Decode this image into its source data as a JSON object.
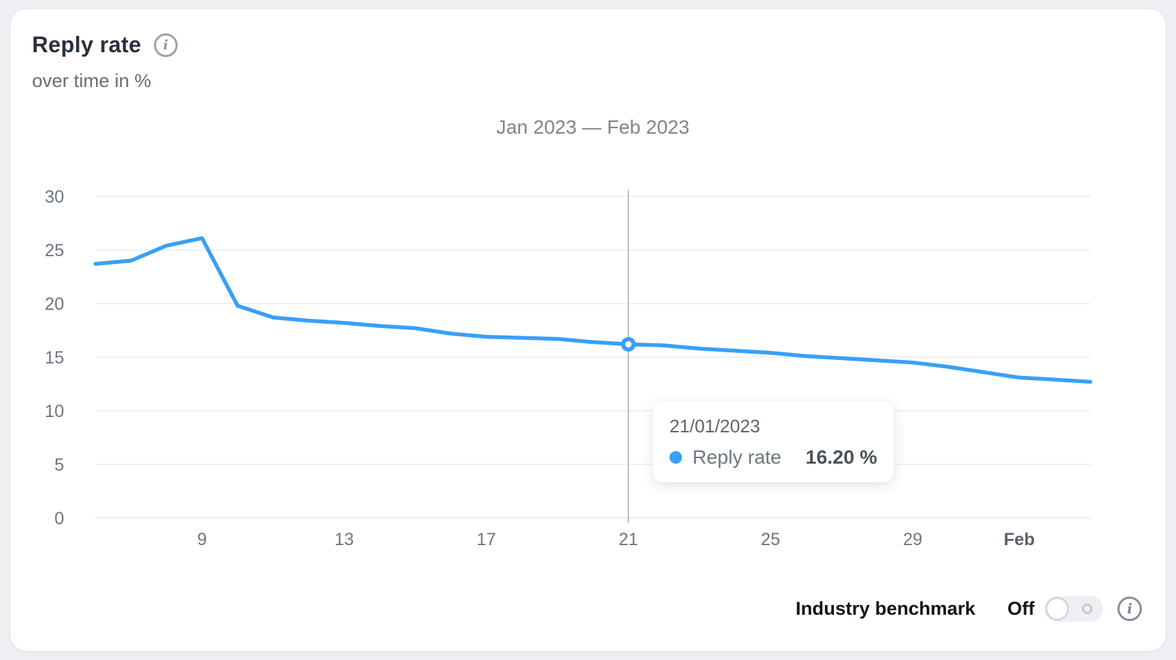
{
  "card": {
    "title": "Reply rate",
    "subtitle": "over time in %",
    "title_info_icon": "info-icon",
    "benchmark_info_icon": "info-icon"
  },
  "chart_data": {
    "type": "line",
    "title": "Jan 2023 — Feb 2023",
    "ylim": [
      0,
      30
    ],
    "y_ticks": [
      0,
      5,
      10,
      15,
      20,
      25,
      30
    ],
    "grid": "horizontal",
    "colors": {
      "line": "#38a0f7",
      "grid": "#eaecee",
      "axis_text": "#6e7580",
      "cursor_line": "#bbbfc6"
    },
    "series": [
      {
        "name": "Reply rate",
        "dates": [
          "2023-01-06",
          "2023-01-07",
          "2023-01-08",
          "2023-01-09",
          "2023-01-10",
          "2023-01-11",
          "2023-01-12",
          "2023-01-13",
          "2023-01-14",
          "2023-01-15",
          "2023-01-16",
          "2023-01-17",
          "2023-01-18",
          "2023-01-19",
          "2023-01-20",
          "2023-01-21",
          "2023-01-22",
          "2023-01-23",
          "2023-01-24",
          "2023-01-25",
          "2023-01-26",
          "2023-01-27",
          "2023-01-28",
          "2023-01-29",
          "2023-01-30",
          "2023-01-31",
          "2023-02-01",
          "2023-02-02",
          "2023-02-03"
        ],
        "values": [
          23.7,
          24.0,
          25.4,
          26.1,
          19.8,
          18.7,
          18.4,
          18.2,
          17.9,
          17.7,
          17.2,
          16.9,
          16.8,
          16.7,
          16.4,
          16.2,
          16.1,
          15.8,
          15.6,
          15.4,
          15.1,
          14.9,
          14.7,
          14.5,
          14.1,
          13.6,
          13.1,
          12.9,
          12.7
        ]
      }
    ],
    "x_ticks": [
      {
        "index": 3,
        "label": "9",
        "bold": false
      },
      {
        "index": 7,
        "label": "13",
        "bold": false
      },
      {
        "index": 11,
        "label": "17",
        "bold": false
      },
      {
        "index": 15,
        "label": "21",
        "bold": false
      },
      {
        "index": 19,
        "label": "25",
        "bold": false
      },
      {
        "index": 23,
        "label": "29",
        "bold": false
      },
      {
        "index": 26,
        "label": "Feb",
        "bold": true
      }
    ],
    "highlight": {
      "index": 15,
      "value": 16.2
    }
  },
  "tooltip": {
    "date": "21/01/2023",
    "series_label": "Reply rate",
    "value": "16.20 %"
  },
  "benchmark": {
    "label": "Industry benchmark",
    "state_label": "Off",
    "toggle_state": "off"
  }
}
